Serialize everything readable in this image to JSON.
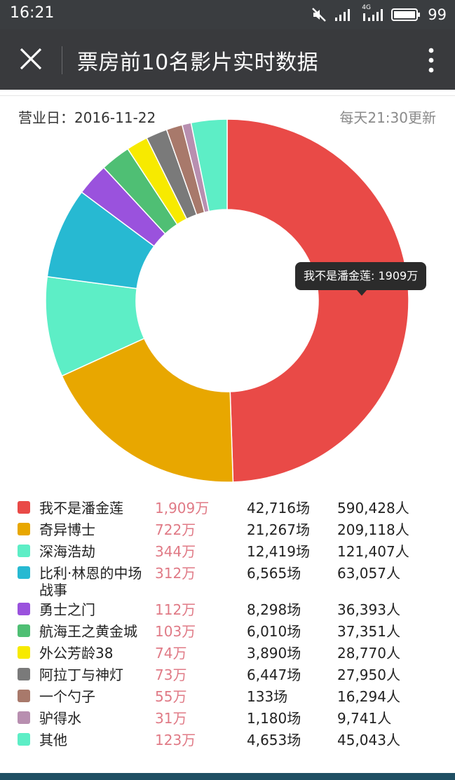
{
  "status_bar": {
    "time": "16:21",
    "battery": "99",
    "network": "4G"
  },
  "app_bar": {
    "title": "票房前10名影片实时数据"
  },
  "header": {
    "date_label": "营业日：2016-11-22",
    "update_note": "每天21:30更新"
  },
  "tooltip": "我不是潘金莲: 1909万",
  "colors": {
    "statusbar": "#3a3d40",
    "appbar": "#393a3d",
    "gross_text": "#e07a86"
  },
  "chart_data": {
    "type": "pie",
    "donut": true,
    "categories": [
      "我不是潘金莲",
      "奇异博士",
      "深海浩劫",
      "比利·林恩的中场战事",
      "勇士之门",
      "航海王之黄金城",
      "外公芳龄38",
      "阿拉丁与神灯",
      "一个勺子",
      "驴得水",
      "其他"
    ],
    "values": [
      1909,
      722,
      344,
      312,
      112,
      103,
      74,
      73,
      55,
      31,
      123
    ],
    "colors": [
      "#e94a47",
      "#e8a700",
      "#5deec6",
      "#27b9d2",
      "#9a52dd",
      "#4fbf74",
      "#f7ea00",
      "#7a7a7a",
      "#a8796b",
      "#b88fb0",
      "#5deec6"
    ],
    "legend": "bottom"
  },
  "table": {
    "rows": [
      {
        "name": "我不是潘金莲",
        "gross": "1,909万",
        "shows": "42,716场",
        "people": "590,428人"
      },
      {
        "name": "奇异博士",
        "gross": "722万",
        "shows": "21,267场",
        "people": "209,118人"
      },
      {
        "name": "深海浩劫",
        "gross": "344万",
        "shows": "12,419场",
        "people": "121,407人"
      },
      {
        "name": "比利·林恩的中场战事",
        "gross": "312万",
        "shows": "6,565场",
        "people": "63,057人"
      },
      {
        "name": "勇士之门",
        "gross": "112万",
        "shows": "8,298场",
        "people": "36,393人"
      },
      {
        "name": "航海王之黄金城",
        "gross": "103万",
        "shows": "6,010场",
        "people": "37,351人"
      },
      {
        "name": "外公芳龄38",
        "gross": "74万",
        "shows": "3,890场",
        "people": "28,770人"
      },
      {
        "name": "阿拉丁与神灯",
        "gross": "73万",
        "shows": "6,447场",
        "people": "27,950人"
      },
      {
        "name": "一个勺子",
        "gross": "55万",
        "shows": "133场",
        "people": "16,294人"
      },
      {
        "name": "驴得水",
        "gross": "31万",
        "shows": "1,180场",
        "people": "9,741人"
      },
      {
        "name": "其他",
        "gross": "123万",
        "shows": "4,653场",
        "people": "45,043人"
      }
    ]
  }
}
